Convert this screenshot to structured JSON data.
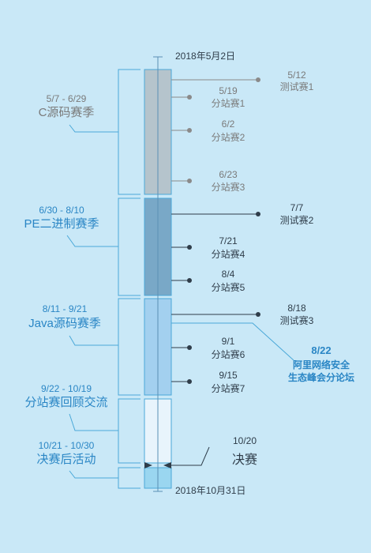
{
  "timeline": {
    "start_label": "2018年5月2日",
    "end_label": "2018年10月31日"
  },
  "seasons": [
    {
      "range": "5/7 - 6/29",
      "name": "C源码赛季",
      "color": "#b5c4cc",
      "text_color": "#7a7a7a"
    },
    {
      "range": "6/30 - 8/10",
      "name": "PE二进制赛季",
      "color": "#79a8c7",
      "text_color": "#2a86c5"
    },
    {
      "range": "8/11 - 9/21",
      "name": "Java源码赛季",
      "color": "#a3d0ef",
      "text_color": "#2a86c5"
    },
    {
      "range": "9/22 - 10/19",
      "name": "分站赛回顾交流",
      "color": "#e8f4fc",
      "text_color": "#2a86c5"
    },
    {
      "range": "10/21 - 10/30",
      "name": "决赛后活动",
      "color": "#9ad6f0",
      "text_color": "#2a86c5"
    }
  ],
  "events": [
    {
      "date": "5/12",
      "name": "测试赛1",
      "style": "gray",
      "kind": "test"
    },
    {
      "date": "5/19",
      "name": "分站赛1",
      "style": "gray",
      "kind": "station"
    },
    {
      "date": "6/2",
      "name": "分站赛2",
      "style": "gray",
      "kind": "station"
    },
    {
      "date": "6/23",
      "name": "分站赛3",
      "style": "gray",
      "kind": "station"
    },
    {
      "date": "7/7",
      "name": "测试赛2",
      "style": "dark",
      "kind": "test"
    },
    {
      "date": "7/21",
      "name": "分站赛4",
      "style": "dark",
      "kind": "station"
    },
    {
      "date": "8/4",
      "name": "分站赛5",
      "style": "dark",
      "kind": "station"
    },
    {
      "date": "8/18",
      "name": "测试赛3",
      "style": "dark",
      "kind": "test"
    },
    {
      "date": "9/1",
      "name": "分站赛6",
      "style": "dark",
      "kind": "station"
    },
    {
      "date": "9/15",
      "name": "分站赛7",
      "style": "dark",
      "kind": "station"
    }
  ],
  "forum": {
    "date": "8/22",
    "line1": "阿里网络安全",
    "line2": "生态峰会分论坛"
  },
  "final": {
    "date": "10/20",
    "name": "决赛"
  },
  "colors": {
    "background": "#c9e8f7",
    "line": "#4aa8d8",
    "dark_marker": "#2f3d4a",
    "gray_marker": "#8a8a8a"
  }
}
